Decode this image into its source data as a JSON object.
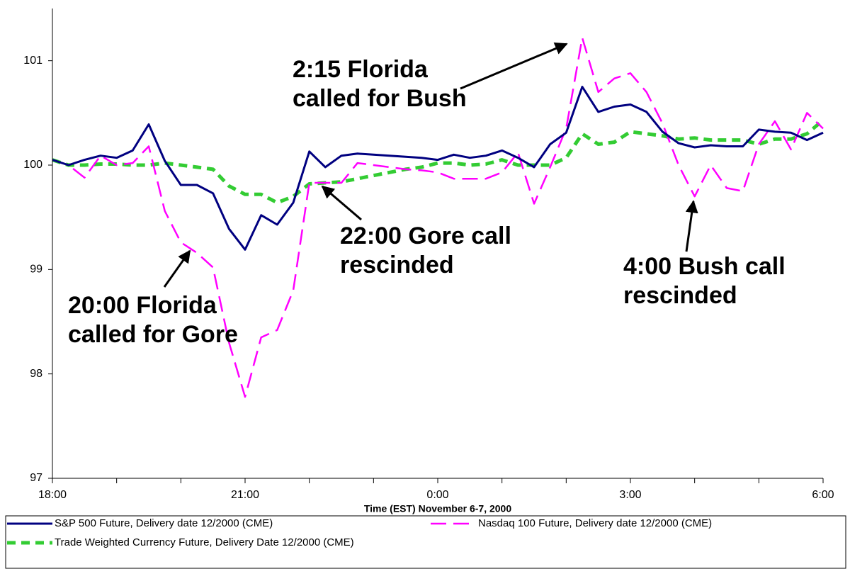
{
  "chart_data": {
    "type": "line",
    "xlabel": "Time (EST) November 6-7, 2000",
    "categories": [
      "18:00",
      null,
      null,
      null,
      null,
      null,
      null,
      null,
      null,
      null,
      null,
      null,
      "21:00",
      null,
      null,
      null,
      null,
      null,
      null,
      null,
      null,
      null,
      null,
      null,
      "0:00",
      null,
      null,
      null,
      null,
      null,
      null,
      null,
      null,
      null,
      null,
      null,
      "3:00",
      null,
      null,
      null,
      null,
      null,
      null,
      null,
      null,
      null,
      null,
      null,
      "6:00"
    ],
    "ylim": [
      97,
      101.5
    ],
    "yticks": [
      97,
      98,
      99,
      100,
      101
    ],
    "legend": "bottom",
    "series": [
      {
        "name": "S&P 500 Future, Delivery date 12/2000 (CME)",
        "color": "#000080",
        "dash": "solid",
        "values": [
          100.05,
          100.0,
          100.05,
          100.09,
          100.07,
          100.14,
          100.39,
          100.04,
          99.81,
          99.81,
          99.73,
          99.39,
          99.19,
          99.52,
          99.43,
          99.64,
          100.13,
          99.98,
          100.09,
          100.11,
          100.1,
          100.09,
          100.08,
          100.07,
          100.05,
          100.1,
          100.07,
          100.09,
          100.14,
          100.07,
          99.98,
          100.2,
          100.31,
          100.75,
          100.51,
          100.56,
          100.58,
          100.51,
          100.32,
          100.21,
          100.17,
          100.19,
          100.18,
          100.18,
          100.34,
          100.32,
          100.31,
          100.24,
          100.31
        ]
      },
      {
        "name": "Nasdaq 100 Future, Delivery date 12/2000 (CME)",
        "color": "#ff00ff",
        "dash": "long-dash",
        "values": [
          100.05,
          100.0,
          99.88,
          100.09,
          100.0,
          100.02,
          100.18,
          99.56,
          99.26,
          99.16,
          99.02,
          98.3,
          97.78,
          98.35,
          98.42,
          98.8,
          99.83,
          99.83,
          99.83,
          100.02,
          100.0,
          99.98,
          99.96,
          99.95,
          99.93,
          99.87,
          99.87,
          99.87,
          99.93,
          100.12,
          99.63,
          99.98,
          100.35,
          101.22,
          100.7,
          100.83,
          100.88,
          100.7,
          100.4,
          100.0,
          99.7,
          100.0,
          99.78,
          99.75,
          100.2,
          100.42,
          100.15,
          100.5,
          100.35
        ]
      },
      {
        "name": "Trade Weighted Currency Future, Delivery Date 12/2000 (CME)",
        "color": "#33cc33",
        "dash": "dash",
        "values": [
          100.05,
          100.0,
          100.0,
          100.01,
          100.01,
          100.0,
          100.0,
          100.02,
          100.0,
          99.98,
          99.96,
          99.8,
          99.72,
          99.72,
          99.64,
          99.7,
          99.82,
          99.83,
          99.84,
          99.87,
          99.9,
          99.93,
          99.96,
          99.98,
          100.02,
          100.02,
          100.0,
          100.01,
          100.05,
          100.0,
          100.0,
          100.0,
          100.07,
          100.3,
          100.2,
          100.22,
          100.32,
          100.3,
          100.28,
          100.25,
          100.26,
          100.24,
          100.24,
          100.24,
          100.2,
          100.25,
          100.25,
          100.3,
          100.43
        ]
      }
    ],
    "annotations": [
      {
        "lines": [
          "2:15 Florida",
          "called for Bush"
        ]
      },
      {
        "lines": [
          "22:00 Gore call",
          "rescinded"
        ]
      },
      {
        "lines": [
          "20:00 Florida",
          "called for Gore"
        ]
      },
      {
        "lines": [
          "4:00 Bush call",
          "rescinded"
        ]
      }
    ]
  }
}
